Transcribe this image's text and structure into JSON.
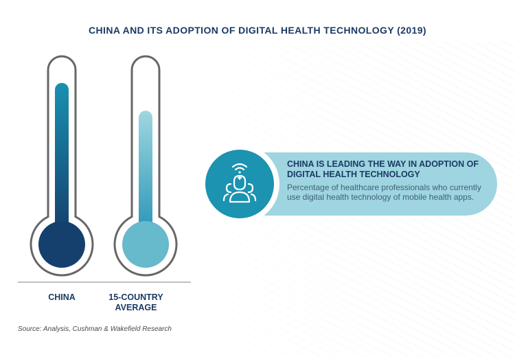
{
  "title": "CHINA AND ITS ADOPTION OF DIGITAL HEALTH TECHNOLOGY (2019)",
  "chart_data": {
    "type": "bar",
    "style": "thermometer",
    "categories": [
      "CHINA",
      "15-COUNTRY AVERAGE"
    ],
    "values": [
      0.93,
      0.75
    ],
    "ylim": [
      0,
      1
    ],
    "grid": false,
    "colors": [
      "#15406d",
      "#67b9cc"
    ],
    "gradient_top": "#1a90b0"
  },
  "callout": {
    "heading": "CHINA IS LEADING THE WAY IN ADOPTION OF DIGITAL HEALTH TECHNOLOGY",
    "body": "Percentage of healthcare professionals who currently use digital health technology of mobile health apps.",
    "icon": "doctor-wifi-icon"
  },
  "source": "Source: Analysis, Cushman & Wakefield Research",
  "colors": {
    "title": "#1b3a64",
    "callout_bg": "#9ed5e0",
    "icon_bg": "#1c93b0"
  }
}
